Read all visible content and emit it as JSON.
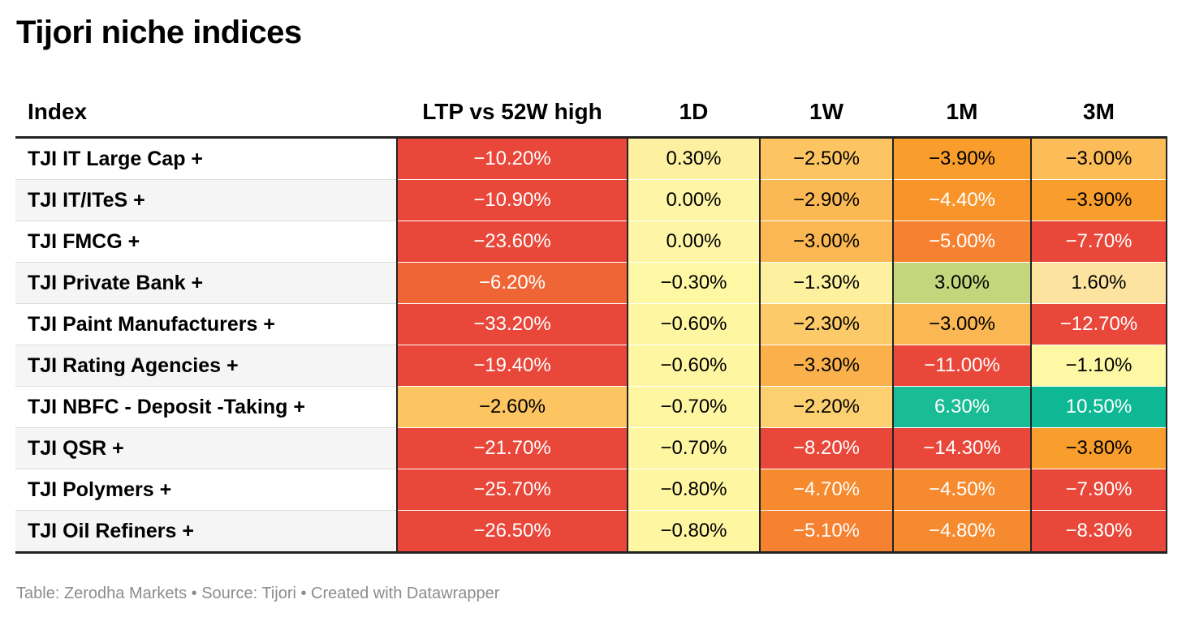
{
  "title": "Tijori niche indices",
  "footer": "Table: Zerodha Markets • Source: Tijori • Created with Datawrapper",
  "chart_data": {
    "type": "table",
    "title": "Tijori niche indices",
    "columns": [
      "Index",
      "LTP vs 52W high",
      "1D",
      "1W",
      "1M",
      "3M"
    ],
    "rows": [
      {
        "name": "TJI IT Large Cap +",
        "values": [
          "−10.20%",
          "0.30%",
          "−2.50%",
          "−3.90%",
          "−3.00%"
        ]
      },
      {
        "name": "TJI IT/ITeS +",
        "values": [
          "−10.90%",
          "0.00%",
          "−2.90%",
          "−4.40%",
          "−3.90%"
        ]
      },
      {
        "name": "TJI FMCG +",
        "values": [
          "−23.60%",
          "0.00%",
          "−3.00%",
          "−5.00%",
          "−7.70%"
        ]
      },
      {
        "name": "TJI Private Bank +",
        "values": [
          "−6.20%",
          "−0.30%",
          "−1.30%",
          "3.00%",
          "1.60%"
        ]
      },
      {
        "name": "TJI Paint Manufacturers +",
        "values": [
          "−33.20%",
          "−0.60%",
          "−2.30%",
          "−3.00%",
          "−12.70%"
        ]
      },
      {
        "name": "TJI Rating Agencies +",
        "values": [
          "−19.40%",
          "−0.60%",
          "−3.30%",
          "−11.00%",
          "−1.10%"
        ]
      },
      {
        "name": "TJI NBFC - Deposit -Taking +",
        "values": [
          "−2.60%",
          "−0.70%",
          "−2.20%",
          "6.30%",
          "10.50%"
        ]
      },
      {
        "name": "TJI QSR +",
        "values": [
          "−21.70%",
          "−0.70%",
          "−8.20%",
          "−14.30%",
          "−3.80%"
        ]
      },
      {
        "name": "TJI Polymers +",
        "values": [
          "−25.70%",
          "−0.80%",
          "−4.70%",
          "−4.50%",
          "−7.90%"
        ]
      },
      {
        "name": "TJI Oil Refiners +",
        "values": [
          "−26.50%",
          "−0.80%",
          "−5.10%",
          "−4.80%",
          "−8.30%"
        ]
      }
    ],
    "cell_colors": [
      [
        "#e8473a",
        "#fdf0a0",
        "#fcc562",
        "#f99e2c",
        "#fcbc58"
      ],
      [
        "#e8473a",
        "#fef6a6",
        "#fbb955",
        "#f8942a",
        "#f99e2c"
      ],
      [
        "#e8473a",
        "#fef6a6",
        "#fbb753",
        "#f68130",
        "#e8473a"
      ],
      [
        "#ef6536",
        "#fef8a4",
        "#fdf1a0",
        "#c4d67c",
        "#fce3a0"
      ],
      [
        "#e8473a",
        "#fff6a2",
        "#fcca68",
        "#fbb753",
        "#e8473a"
      ],
      [
        "#e8473a",
        "#fff6a2",
        "#fab04b",
        "#e8473a",
        "#fef8a4"
      ],
      [
        "#fcc562",
        "#fff6a2",
        "#fcd070",
        "#19bc94",
        "#0eb894"
      ],
      [
        "#e8473a",
        "#fff6a2",
        "#e8473a",
        "#e8473a",
        "#f99e2c"
      ],
      [
        "#e8473a",
        "#fff6a2",
        "#f68a2e",
        "#f68a2e",
        "#e8473a"
      ],
      [
        "#e8473a",
        "#fff6a2",
        "#f68130",
        "#f68a2e",
        "#e8473a"
      ]
    ],
    "light_text_colors": [
      "#e8473a",
      "#ef6536",
      "#f68130",
      "#f68a2e",
      "#f8942a",
      "#19bc94",
      "#0eb894"
    ]
  }
}
